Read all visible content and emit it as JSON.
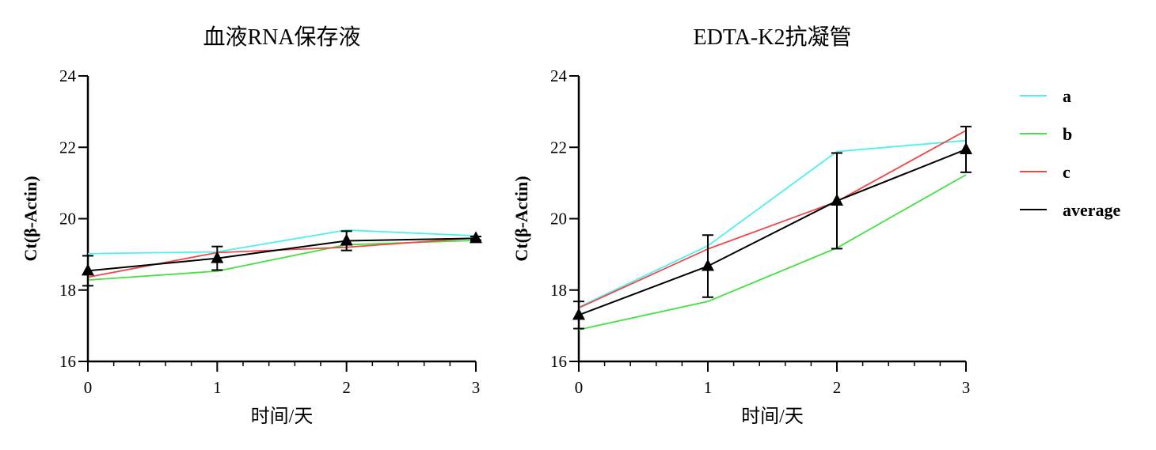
{
  "chart_data": [
    {
      "type": "line",
      "title": "血液RNA保存液",
      "xlabel": "时间/天",
      "ylabel": "Ct(β-Actin)",
      "x": [
        0,
        1,
        2,
        3
      ],
      "xlim": [
        0,
        3
      ],
      "ylim": [
        16,
        24
      ],
      "xticks": [
        "0",
        "1",
        "2",
        "3"
      ],
      "yticks": [
        "16",
        "18",
        "20",
        "22",
        "24"
      ],
      "grid": false,
      "series": [
        {
          "name": "a",
          "color": "#4df0f0",
          "values": [
            19.02,
            19.07,
            19.68,
            19.52
          ]
        },
        {
          "name": "b",
          "color": "#44e044",
          "values": [
            18.28,
            18.53,
            19.27,
            19.39
          ]
        },
        {
          "name": "c",
          "color": "#f04848",
          "values": [
            18.36,
            19.05,
            19.2,
            19.46
          ]
        },
        {
          "name": "average",
          "color": "#000000",
          "marker": "triangle",
          "values": [
            18.54,
            18.89,
            19.38,
            19.45
          ],
          "error": [
            0.42,
            0.33,
            0.27,
            0.05
          ]
        }
      ]
    },
    {
      "type": "line",
      "title": "EDTA-K2抗凝管",
      "xlabel": "时间/天",
      "ylabel": "Ct(β-Actin)",
      "x": [
        0,
        1,
        2,
        3
      ],
      "xlim": [
        0,
        3
      ],
      "ylim": [
        16,
        24
      ],
      "xticks": [
        "0",
        "1",
        "2",
        "3"
      ],
      "yticks": [
        "16",
        "18",
        "20",
        "22",
        "24"
      ],
      "grid": false,
      "legend": "right",
      "series": [
        {
          "name": "a",
          "color": "#4df0f0",
          "values": [
            17.52,
            19.24,
            21.88,
            22.19
          ]
        },
        {
          "name": "b",
          "color": "#44e044",
          "values": [
            16.89,
            17.68,
            19.18,
            21.23
          ]
        },
        {
          "name": "c",
          "color": "#f04848",
          "values": [
            17.5,
            19.15,
            20.48,
            22.47
          ]
        },
        {
          "name": "average",
          "color": "#000000",
          "marker": "triangle",
          "values": [
            17.3,
            18.67,
            20.5,
            21.94
          ],
          "error": [
            0.38,
            0.87,
            1.34,
            0.64
          ]
        }
      ]
    }
  ]
}
